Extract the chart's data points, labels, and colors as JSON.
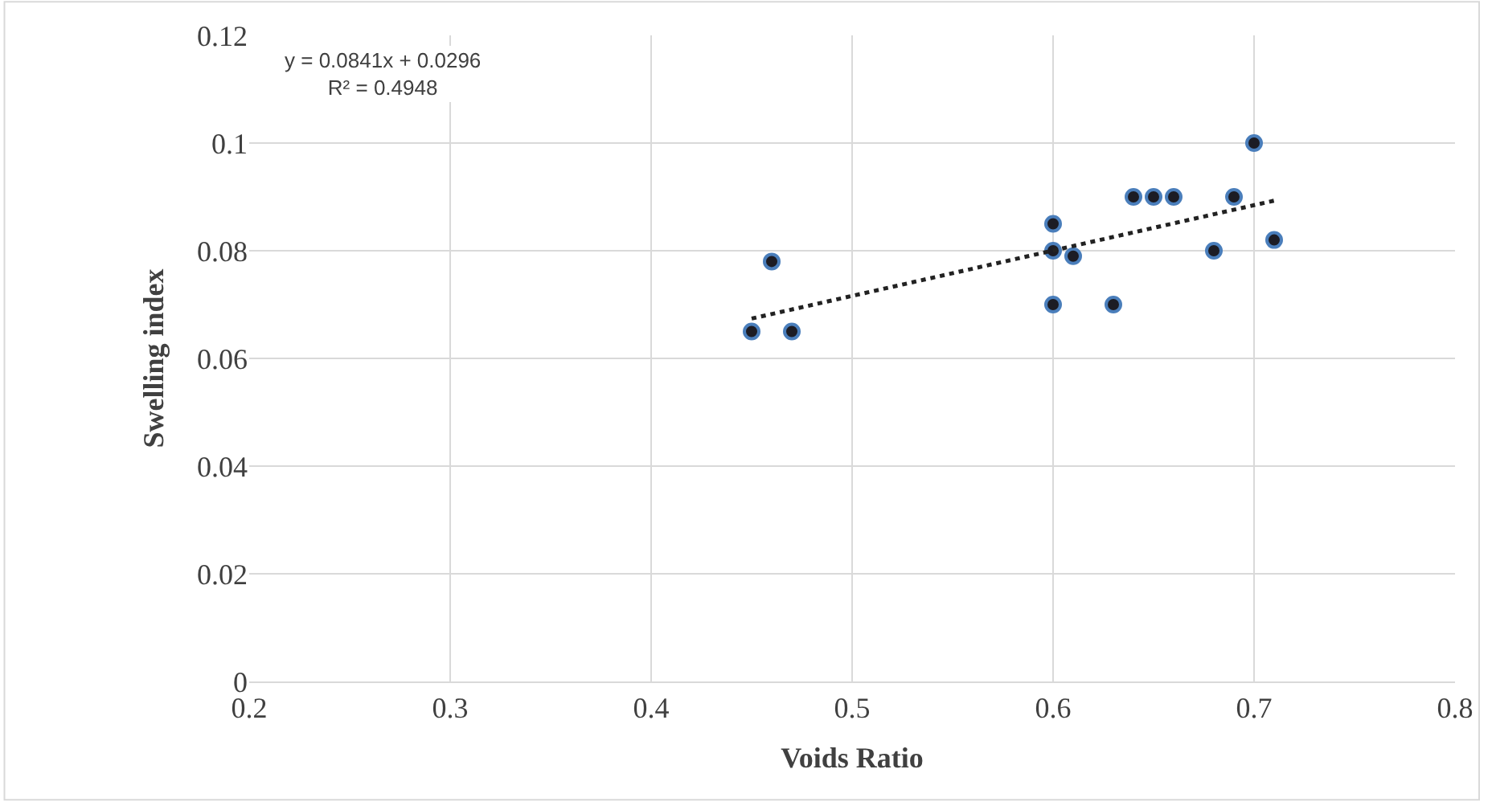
{
  "chart_data": {
    "type": "scatter",
    "xlabel": "Voids Ratio",
    "ylabel": "Swelling index",
    "xlim": [
      0.2,
      0.8
    ],
    "xticks": [
      0.2,
      0.3,
      0.4,
      0.5,
      0.6,
      0.7,
      0.8
    ],
    "ylim": [
      0,
      0.12
    ],
    "yticks": [
      0,
      0.02,
      0.04,
      0.06,
      0.08,
      0.1,
      0.12
    ],
    "grid": true,
    "marker": "circle",
    "annotations": [
      "y = 0.0841x + 0.0296",
      "R² = 0.4948"
    ],
    "series": [
      {
        "color": "#1c1c24",
        "x": [
          0.45,
          0.46,
          0.47,
          0.6,
          0.6,
          0.6,
          0.61,
          0.63,
          0.64,
          0.65,
          0.66,
          0.68,
          0.69,
          0.7,
          0.71
        ],
        "values": [
          0.065,
          0.078,
          0.065,
          0.085,
          0.08,
          0.07,
          0.079,
          0.07,
          0.09,
          0.09,
          0.09,
          0.08,
          0.09,
          0.1,
          0.082
        ]
      },
      {
        "type": "line",
        "color": "#222222",
        "line_style": "dotted",
        "marker": "none",
        "x": [
          0.45,
          0.71
        ],
        "values": [
          0.0674,
          0.0893
        ]
      }
    ]
  }
}
